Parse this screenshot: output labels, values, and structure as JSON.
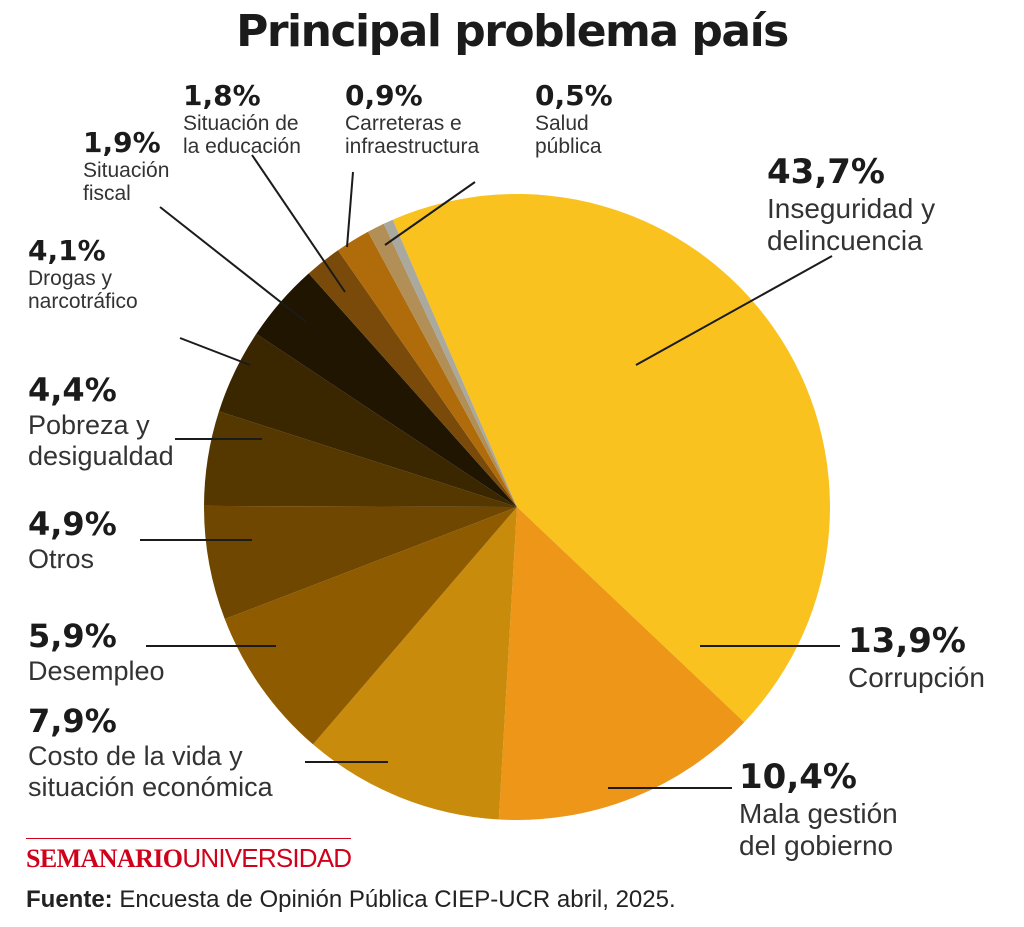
{
  "chart_data": {
    "type": "pie",
    "title": "Principal problema país",
    "slices": [
      {
        "pct": "43,7%",
        "value": 43.7,
        "label": [
          "Inseguridad y",
          "delincuencia"
        ],
        "color": "#F9C21F"
      },
      {
        "pct": "13,9%",
        "value": 13.9,
        "label": [
          "Corrupción"
        ],
        "color": "#ED9617"
      },
      {
        "pct": "10,4%",
        "value": 10.4,
        "label": [
          "Mala gestión",
          "del gobierno"
        ],
        "color": "#C98B0C"
      },
      {
        "pct": "7,9%",
        "value": 7.9,
        "label": [
          "Costo de la vida y",
          "situación económica"
        ],
        "color": "#8F5B00"
      },
      {
        "pct": "5,9%",
        "value": 5.9,
        "label": [
          "Desempleo"
        ],
        "color": "#6F4700"
      },
      {
        "pct": "4,9%",
        "value": 4.9,
        "label": [
          "Otros"
        ],
        "color": "#553700"
      },
      {
        "pct": "4,4%",
        "value": 4.4,
        "label": [
          "Pobreza y",
          "desigualdad"
        ],
        "color": "#3A2700"
      },
      {
        "pct": "4,1%",
        "value": 4.1,
        "label": [
          "Drogas y",
          "narcotráfico"
        ],
        "color": "#1F1500"
      },
      {
        "pct": "1,9%",
        "value": 1.9,
        "label": [
          "Situación",
          "fiscal"
        ],
        "color": "#7A4A0A"
      },
      {
        "pct": "1,8%",
        "value": 1.8,
        "label": [
          "Situación de",
          "la educación"
        ],
        "color": "#B06C0A"
      },
      {
        "pct": "0,9%",
        "value": 0.9,
        "label": [
          "Carreteras e",
          "infraestructura"
        ],
        "color": "#B28F57"
      },
      {
        "pct": "0,5%",
        "value": 0.5,
        "label": [
          "Salud",
          "pública"
        ],
        "color": "#A9A9A0"
      }
    ]
  },
  "footer": {
    "brand_bold": "SEMANARIO",
    "brand_light": "UNIVERSIDAD",
    "source_label": "Fuente:",
    "source_text": "Encuesta de Opinión Pública CIEP-UCR abril, 2025."
  }
}
